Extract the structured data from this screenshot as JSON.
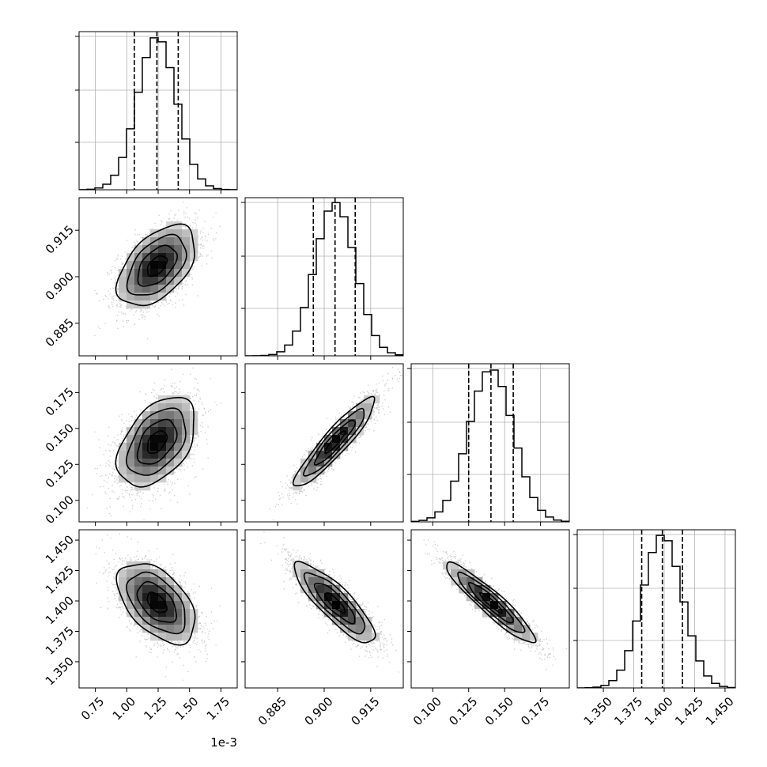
{
  "chart_data": {
    "type": "corner",
    "title": "",
    "parameters": [
      {
        "axis_range": [
          0.62,
          1.88
        ],
        "axis_offset_label": "1e-3",
        "ticks": [
          0.75,
          1.0,
          1.25,
          1.5,
          1.75
        ],
        "tick_labels": [
          "0.75",
          "1.00",
          "1.25",
          "1.50",
          "1.75"
        ],
        "quantiles": [
          1.06,
          1.24,
          1.41
        ],
        "mean": 1.24,
        "sigma": 0.155,
        "hist_ylim": [
          0,
          1.0
        ],
        "hist_gridlines": [
          0.3,
          0.63,
          0.97
        ]
      },
      {
        "axis_range": [
          0.8745,
          0.9255
        ],
        "axis_offset_label": "",
        "ticks": [
          0.885,
          0.9,
          0.915
        ],
        "tick_labels": [
          "0.885",
          "0.900",
          "0.915"
        ],
        "quantiles": [
          0.8965,
          0.9035,
          0.91
        ],
        "mean": 0.9035,
        "sigma": 0.0065,
        "hist_ylim": [
          0,
          1.0
        ],
        "hist_gridlines": [
          0.3,
          0.63,
          0.97
        ]
      },
      {
        "axis_range": [
          0.085,
          0.195
        ],
        "axis_offset_label": "",
        "ticks": [
          0.1,
          0.125,
          0.15,
          0.175
        ],
        "tick_labels": [
          "0.100",
          "0.125",
          "0.150",
          "0.175"
        ],
        "quantiles": [
          0.125,
          0.1405,
          0.156
        ],
        "mean": 0.1405,
        "sigma": 0.0155,
        "hist_ylim": [
          0,
          1.0
        ],
        "hist_gridlines": [
          0.3,
          0.63,
          0.97
        ]
      },
      {
        "axis_range": [
          1.3285,
          1.4585
        ],
        "axis_offset_label": "",
        "ticks": [
          1.35,
          1.375,
          1.4,
          1.425,
          1.45
        ],
        "tick_labels": [
          "1.350",
          "1.375",
          "1.400",
          "1.425",
          "1.450"
        ],
        "quantiles": [
          1.3815,
          1.3985,
          1.415
        ],
        "mean": 1.3985,
        "sigma": 0.0165,
        "hist_ylim": [
          0,
          1.0
        ],
        "hist_gridlines": [
          0.3,
          0.63,
          0.97
        ]
      }
    ],
    "correlations": [
      {
        "pair": [
          0,
          1
        ],
        "rho": 0.5
      },
      {
        "pair": [
          0,
          2
        ],
        "rho": 0.45
      },
      {
        "pair": [
          1,
          2
        ],
        "rho": 0.92
      },
      {
        "pair": [
          0,
          3
        ],
        "rho": -0.5
      },
      {
        "pair": [
          1,
          3
        ],
        "rho": -0.85
      },
      {
        "pair": [
          2,
          3
        ],
        "rho": -0.93
      }
    ],
    "contour_levels_sigma": [
      0.5,
      1.0,
      1.5,
      2.0
    ],
    "histogram_bins": 20,
    "grid": true,
    "colors": {
      "hist": "#000000",
      "scatter": "#8c8c8c",
      "density": "#000000",
      "grid": "#b0b0b0",
      "contour": "#000000"
    }
  }
}
